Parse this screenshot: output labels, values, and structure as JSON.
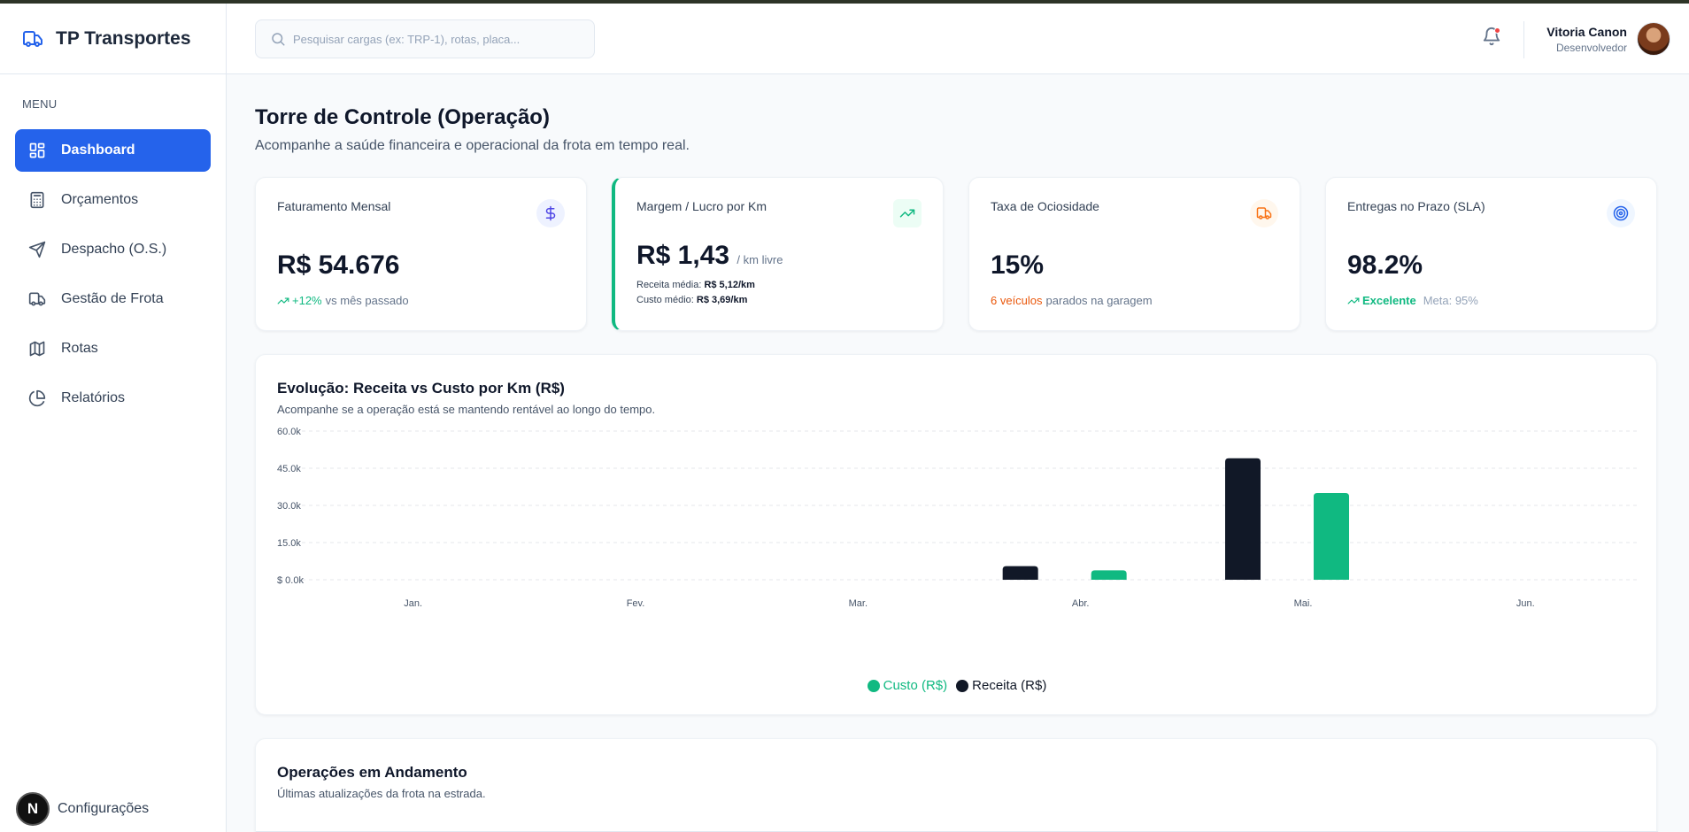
{
  "brand": {
    "name": "TP Transportes",
    "icon": "truck-icon"
  },
  "sidebar": {
    "menu_label": "MENU",
    "items": [
      {
        "label": "Dashboard",
        "icon": "layout-dashboard-icon",
        "active": true
      },
      {
        "label": "Orçamentos",
        "icon": "calculator-icon"
      },
      {
        "label": "Despacho (O.S.)",
        "icon": "send-icon"
      },
      {
        "label": "Gestão de Frota",
        "icon": "truck-icon"
      },
      {
        "label": "Rotas",
        "icon": "map-icon"
      },
      {
        "label": "Relatórios",
        "icon": "pie-chart-icon"
      }
    ],
    "settings_badge": "N",
    "settings_label": "Configurações"
  },
  "header": {
    "search_placeholder": "Pesquisar cargas (ex: TRP-1), rotas, placa...",
    "user_name": "Vitoria Canon",
    "user_role": "Desenvolvedor"
  },
  "page": {
    "title": "Torre de Controle (Operação)",
    "subtitle": "Acompanhe a saúde financeira e operacional da frota em tempo real."
  },
  "kpis": {
    "revenue": {
      "title": "Faturamento Mensal",
      "value": "R$ 54.676",
      "delta": "+12%",
      "note": "vs mês passado",
      "icon": "dollar-icon"
    },
    "margin": {
      "title": "Margem / Lucro por Km",
      "value": "R$ 1,43",
      "unit": "/ km livre",
      "revenue_label": "Receita média:",
      "revenue_value": "R$ 5,12/km",
      "cost_label": "Custo médio:",
      "cost_value": "R$ 3,69/km",
      "icon": "trending-up-icon"
    },
    "idle": {
      "title": "Taxa de Ociosidade",
      "value": "15%",
      "highlight": "6 veículos",
      "note": "parados na garagem",
      "icon": "truck-icon"
    },
    "sla": {
      "title": "Entregas no Prazo (SLA)",
      "value": "98.2%",
      "status": "Excelente",
      "goal": "Meta: 95%",
      "icon": "target-icon"
    }
  },
  "chart_section": {
    "title": "Evolução: Receita vs Custo por Km (R$)",
    "subtitle": "Acompanhe se a operação está se mantendo rentável ao longo do tempo."
  },
  "chart_data": {
    "type": "bar",
    "categories": [
      "Jan.",
      "Fev.",
      "Mar.",
      "Abr.",
      "Mai.",
      "Jun."
    ],
    "series": [
      {
        "name": "Receita (R$)",
        "color": "#111827",
        "values": [
          0,
          0,
          0,
          5500,
          49000,
          0
        ]
      },
      {
        "name": "Custo (R$)",
        "color": "#10b981",
        "values": [
          0,
          0,
          0,
          3800,
          35000,
          0
        ]
      }
    ],
    "yticks": [
      "$ 0.0k",
      "15.0k",
      "30.0k",
      "45.0k",
      "60.0k"
    ],
    "ylim": [
      0,
      60000
    ],
    "grid": true,
    "legend_order": [
      "Custo (R$)",
      "Receita (R$)"
    ],
    "legend_position": "bottom-center"
  },
  "ops_section": {
    "title": "Operações em Andamento",
    "subtitle": "Últimas atualizações da frota na estrada."
  }
}
